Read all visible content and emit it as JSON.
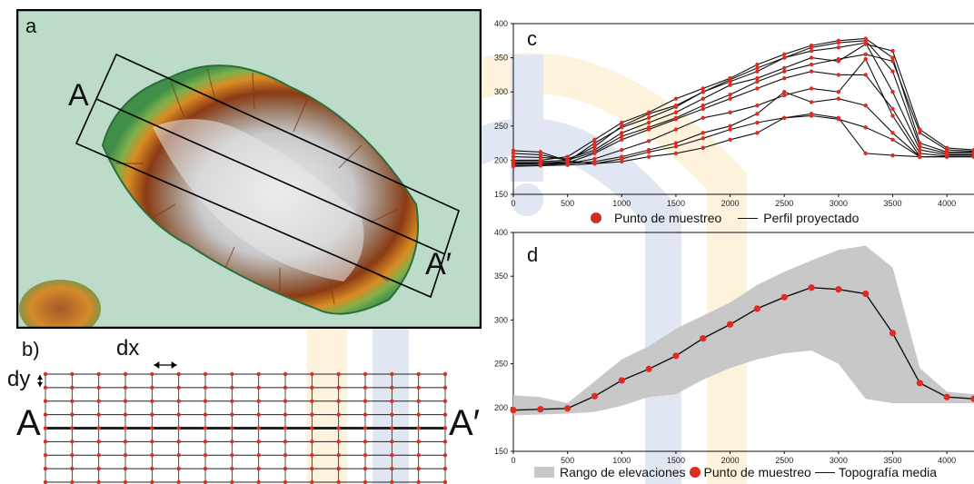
{
  "panels": {
    "a": {
      "letter": "a",
      "left_label": "A",
      "right_label": "A′"
    },
    "b": {
      "letter": "b)",
      "dx_label": "dx",
      "dy_label": "dy",
      "left_label": "A",
      "right_label": "A′"
    },
    "c": {
      "letter": "c"
    },
    "d": {
      "letter": "d"
    }
  },
  "colors": {
    "sample_point": "#e02b20",
    "line": "#111111",
    "range_fill": "#c8c8c8",
    "grid_line": "#222222",
    "grid_point": "#e02b20"
  },
  "chart_data": [
    {
      "id": "c",
      "type": "line",
      "title": "",
      "xlabel": "",
      "ylabel": "",
      "xlim": [
        0,
        4250
      ],
      "ylim": [
        150,
        400
      ],
      "xticks": [
        0,
        500,
        1000,
        1500,
        2000,
        2500,
        3000,
        3500,
        4000
      ],
      "yticks": [
        150,
        200,
        250,
        300,
        350,
        400
      ],
      "x": [
        0,
        250,
        500,
        750,
        1000,
        1250,
        1500,
        1750,
        2000,
        2250,
        2500,
        2750,
        3000,
        3250,
        3500,
        3750,
        4000,
        4250
      ],
      "series": [
        {
          "values": [
            210,
            208,
            200,
            212,
            235,
            248,
            262,
            280,
            296,
            315,
            330,
            340,
            348,
            355,
            345,
            240,
            215,
            213
          ]
        },
        {
          "values": [
            205,
            204,
            202,
            215,
            240,
            255,
            270,
            290,
            310,
            320,
            335,
            350,
            345,
            370,
            360,
            245,
            218,
            215
          ]
        },
        {
          "values": [
            198,
            198,
            200,
            220,
            250,
            268,
            280,
            300,
            315,
            330,
            350,
            365,
            372,
            375,
            330,
            220,
            210,
            210
          ]
        },
        {
          "values": [
            200,
            200,
            205,
            230,
            255,
            270,
            290,
            305,
            320,
            340,
            355,
            368,
            375,
            378,
            350,
            225,
            212,
            212
          ]
        },
        {
          "values": [
            195,
            196,
            198,
            225,
            248,
            262,
            278,
            300,
            318,
            335,
            350,
            360,
            365,
            372,
            300,
            215,
            208,
            208
          ]
        },
        {
          "values": [
            196,
            196,
            196,
            210,
            230,
            245,
            260,
            275,
            290,
            305,
            320,
            330,
            325,
            325,
            275,
            210,
            206,
            206
          ]
        },
        {
          "values": [
            194,
            195,
            195,
            202,
            215,
            228,
            245,
            262,
            270,
            280,
            295,
            305,
            300,
            348,
            265,
            205,
            205,
            205
          ]
        },
        {
          "values": [
            192,
            193,
            195,
            198,
            205,
            215,
            225,
            240,
            250,
            268,
            300,
            285,
            290,
            280,
            240,
            205,
            205,
            205
          ]
        },
        {
          "values": [
            191,
            192,
            193,
            195,
            202,
            212,
            220,
            232,
            245,
            255,
            262,
            265,
            260,
            248,
            230,
            205,
            205,
            205
          ]
        },
        {
          "values": [
            214,
            212,
            199,
            195,
            198,
            205,
            210,
            218,
            230,
            240,
            262,
            268,
            262,
            210,
            207,
            205,
            205,
            205
          ]
        }
      ],
      "legend": [
        {
          "label": "Punto de muestreo",
          "kind": "marker"
        },
        {
          "label": "Perfil proyectado",
          "kind": "line"
        }
      ],
      "legend_position": "bottom"
    },
    {
      "id": "d",
      "type": "area",
      "title": "",
      "xlabel": "",
      "ylabel": "",
      "xlim": [
        0,
        4250
      ],
      "ylim": [
        150,
        400
      ],
      "xticks": [
        0,
        500,
        1000,
        1500,
        2000,
        2500,
        3000,
        3500,
        4000
      ],
      "yticks": [
        150,
        200,
        250,
        300,
        350,
        400
      ],
      "x": [
        0,
        250,
        500,
        750,
        1000,
        1250,
        1500,
        1750,
        2000,
        2250,
        2500,
        2750,
        3000,
        3250,
        3500,
        3750,
        4000,
        4250
      ],
      "range_max": [
        214,
        212,
        205,
        230,
        255,
        270,
        290,
        305,
        320,
        340,
        355,
        368,
        380,
        385,
        360,
        245,
        218,
        215
      ],
      "range_min": [
        191,
        192,
        193,
        195,
        202,
        212,
        215,
        232,
        245,
        255,
        262,
        265,
        250,
        210,
        205,
        205,
        205,
        205
      ],
      "mean": [
        197,
        198,
        199,
        213,
        231,
        244,
        259,
        279,
        295,
        313,
        326,
        337,
        335,
        330,
        285,
        228,
        212,
        210
      ],
      "legend": [
        {
          "label": "Rango de elevaciones",
          "kind": "area"
        },
        {
          "label": "Punto de muestreo",
          "kind": "marker"
        },
        {
          "label": "Topografía media",
          "kind": "line"
        }
      ],
      "legend_position": "bottom"
    }
  ]
}
